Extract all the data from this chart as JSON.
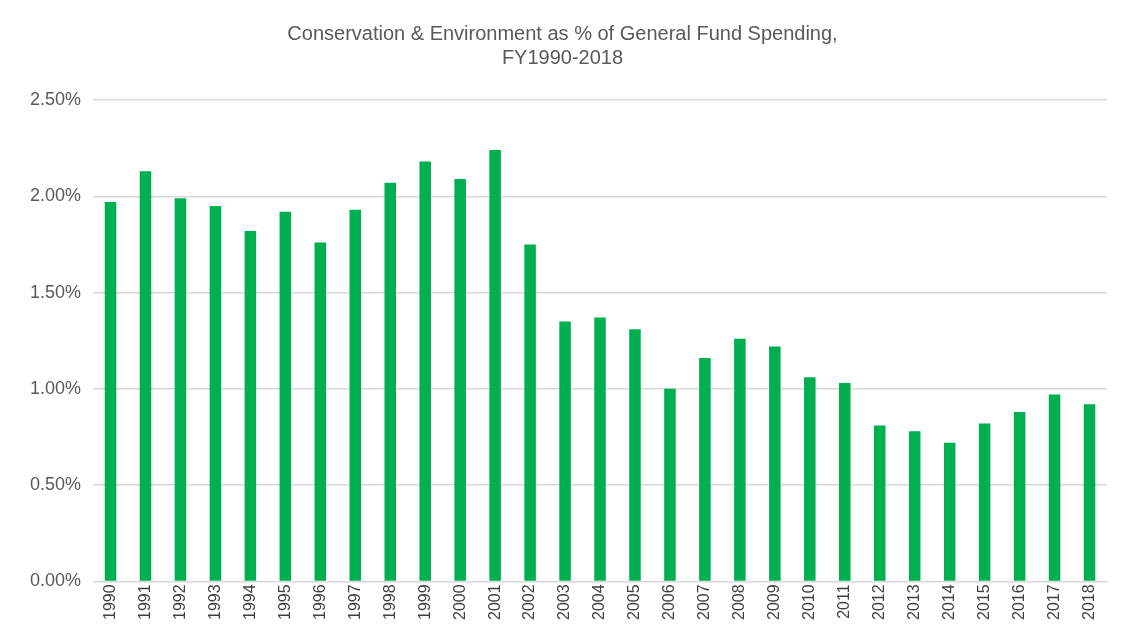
{
  "chart_data": {
    "type": "bar",
    "title": "Conservation & Environment as % of General Fund Spending,\nFY1990-2018",
    "categories": [
      "1990",
      "1991",
      "1992",
      "1993",
      "1994",
      "1995",
      "1996",
      "1997",
      "1998",
      "1999",
      "2000",
      "2001",
      "2002",
      "2003",
      "2004",
      "2005",
      "2006",
      "2007",
      "2008",
      "2009",
      "2010",
      "2011",
      "2012",
      "2013",
      "2014",
      "2015",
      "2016",
      "2017",
      "2018"
    ],
    "values": [
      1.97,
      2.13,
      1.99,
      1.95,
      1.82,
      1.92,
      1.76,
      1.93,
      2.07,
      2.18,
      2.09,
      2.24,
      1.75,
      1.35,
      1.37,
      1.31,
      1.0,
      1.16,
      1.26,
      1.22,
      1.06,
      1.03,
      0.81,
      0.78,
      0.72,
      0.82,
      0.88,
      0.97,
      0.92
    ],
    "color": "#00b050",
    "ylim": [
      0,
      2.5
    ],
    "yticks": [
      {
        "value": 0,
        "label": "0.00%"
      },
      {
        "value": 0.5,
        "label": "0.50%"
      },
      {
        "value": 1,
        "label": "1.00%"
      },
      {
        "value": 1.5,
        "label": "1.50%"
      },
      {
        "value": 2,
        "label": "2.00%"
      },
      {
        "value": 2.5,
        "label": "2.50%"
      }
    ],
    "grid": "y",
    "legend": false
  }
}
